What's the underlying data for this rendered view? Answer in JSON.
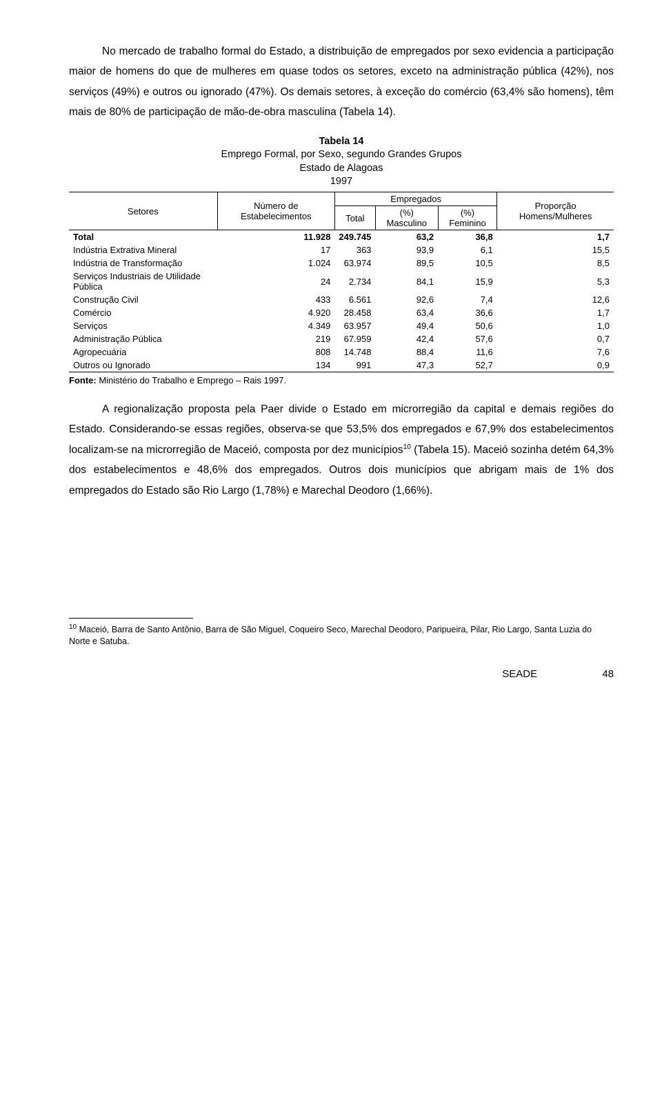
{
  "para1": "No mercado de trabalho formal do Estado, a distribuição de empregados por sexo evidencia a participação maior de homens do que de mulheres em quase todos os setores, exceto na administração pública (42%), nos serviços (49%) e outros ou ignorado (47%). Os demais setores, à exceção do comércio (63,4% são homens), têm mais de 80% de participação de mão-de-obra masculina (Tabela 14).",
  "table": {
    "caption_bold": "Tabela 14",
    "subcaption1": "Emprego Formal, por Sexo, segundo Grandes Grupos",
    "subcaption2": "Estado de Alagoas",
    "subcaption3": "1997",
    "columns": {
      "c1": "Setores",
      "c2": "Número de Estabelecimentos",
      "c3_group": "Empregados",
      "c3a": "Total",
      "c3b": "(%) Masculino",
      "c3c": "(%) Feminino",
      "c4": "Proporção Homens/Mulheres"
    },
    "rows": [
      {
        "label": "Total",
        "estab": "11.928",
        "total": "249.745",
        "masc": "63,2",
        "fem": "36,8",
        "ratio": "1,7",
        "bold": true
      },
      {
        "label": "Indústria Extrativa Mineral",
        "estab": "17",
        "total": "363",
        "masc": "93,9",
        "fem": "6,1",
        "ratio": "15,5"
      },
      {
        "label": "Indústria de Transformação",
        "estab": "1.024",
        "total": "63.974",
        "masc": "89,5",
        "fem": "10,5",
        "ratio": "8,5"
      },
      {
        "label": "Serviços Industriais de Utilidade Pública",
        "estab": "24",
        "total": "2.734",
        "masc": "84,1",
        "fem": "15,9",
        "ratio": "5,3"
      },
      {
        "label": "Construção Civil",
        "estab": "433",
        "total": "6.561",
        "masc": "92,6",
        "fem": "7,4",
        "ratio": "12,6"
      },
      {
        "label": "Comércio",
        "estab": "4.920",
        "total": "28.458",
        "masc": "63,4",
        "fem": "36,6",
        "ratio": "1,7"
      },
      {
        "label": "Serviços",
        "estab": "4.349",
        "total": "63.957",
        "masc": "49,4",
        "fem": "50,6",
        "ratio": "1,0"
      },
      {
        "label": "Administração Pública",
        "estab": "219",
        "total": "67.959",
        "masc": "42,4",
        "fem": "57,6",
        "ratio": "0,7"
      },
      {
        "label": "Agropecuária",
        "estab": "808",
        "total": "14.748",
        "masc": "88,4",
        "fem": "11,6",
        "ratio": "7,6"
      },
      {
        "label": "Outros ou Ignorado",
        "estab": "134",
        "total": "991",
        "masc": "47,3",
        "fem": "52,7",
        "ratio": "0,9"
      }
    ],
    "source_label": "Fonte:",
    "source_text": " Ministério do Trabalho e Emprego – Rais 1997."
  },
  "para2_pre": "A regionalização proposta pela Paer divide o Estado em microrregião da capital e demais regiões do Estado. Considerando-se essas regiões, observa-se que 53,5% dos empregados e 67,9% dos estabelecimentos localizam-se na microrregião de Maceió, composta por dez municípios",
  "para2_sup": "10",
  "para2_post": " (Tabela 15). Maceió sozinha detém 64,3% dos estabelecimentos e 48,6% dos empregados. Outros dois municípios que abrigam mais de 1% dos empregados do Estado são Rio Largo (1,78%) e Marechal Deodoro (1,66%).",
  "footnote": {
    "num": "10",
    "text": " Maceió, Barra de Santo Antônio, Barra de São Miguel, Coqueiro Seco, Marechal Deodoro, Paripueira, Pilar, Rio Largo, Santa Luzia do Norte e Satuba."
  },
  "footer": {
    "seade": "SEADE",
    "page": "48"
  }
}
